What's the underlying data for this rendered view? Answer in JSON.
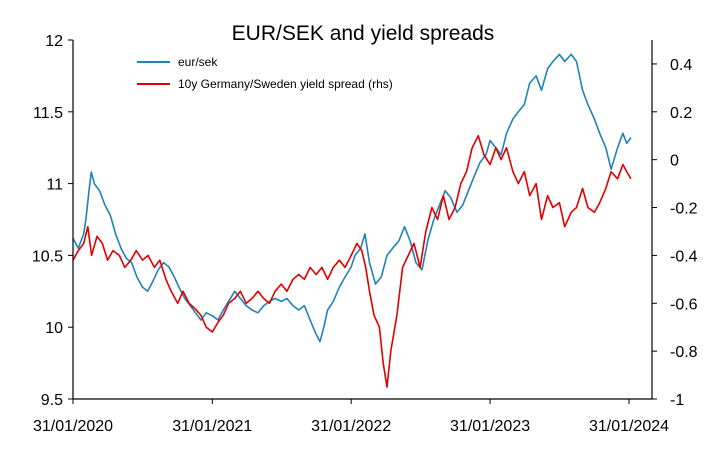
{
  "chart_data": {
    "type": "line",
    "title": "EUR/SEK and yield spreads",
    "x_ticks": [
      "31/01/2020",
      "31/01/2021",
      "31/01/2022",
      "31/01/2023",
      "31/01/2024"
    ],
    "x_range": [
      "2020-01-31",
      "2024-01-31"
    ],
    "y_left": {
      "min": 9.5,
      "max": 12,
      "ticks": [
        "9.5",
        "10",
        "10.5",
        "11",
        "11.5",
        "12"
      ]
    },
    "y_right": {
      "min": -1,
      "max": 0.5,
      "ticks": [
        "-1",
        "-0.8",
        "-0.6",
        "-0.4",
        "-0.2",
        "0",
        "0.2",
        "0.4"
      ]
    },
    "legend_position": "top-left",
    "grid": false,
    "series": [
      {
        "name": "eur/sek",
        "axis": "left",
        "color": "#1f84b4",
        "points": [
          [
            "2020-01-31",
            10.62
          ],
          [
            "2020-02-14",
            10.55
          ],
          [
            "2020-02-28",
            10.65
          ],
          [
            "2020-03-05",
            10.75
          ],
          [
            "2020-03-13",
            10.95
          ],
          [
            "2020-03-19",
            11.08
          ],
          [
            "2020-03-27",
            11.0
          ],
          [
            "2020-04-10",
            10.95
          ],
          [
            "2020-04-24",
            10.85
          ],
          [
            "2020-05-08",
            10.78
          ],
          [
            "2020-05-22",
            10.65
          ],
          [
            "2020-06-05",
            10.55
          ],
          [
            "2020-06-19",
            10.48
          ],
          [
            "2020-07-03",
            10.45
          ],
          [
            "2020-07-17",
            10.35
          ],
          [
            "2020-07-31",
            10.28
          ],
          [
            "2020-08-14",
            10.25
          ],
          [
            "2020-08-28",
            10.32
          ],
          [
            "2020-09-11",
            10.4
          ],
          [
            "2020-09-25",
            10.45
          ],
          [
            "2020-10-09",
            10.42
          ],
          [
            "2020-10-23",
            10.35
          ],
          [
            "2020-11-06",
            10.27
          ],
          [
            "2020-11-20",
            10.2
          ],
          [
            "2020-12-04",
            10.15
          ],
          [
            "2020-12-18",
            10.1
          ],
          [
            "2021-01-01",
            10.05
          ],
          [
            "2021-01-15",
            10.1
          ],
          [
            "2021-01-31",
            10.08
          ],
          [
            "2021-02-15",
            10.05
          ],
          [
            "2021-03-01",
            10.12
          ],
          [
            "2021-03-15",
            10.18
          ],
          [
            "2021-03-31",
            10.25
          ],
          [
            "2021-04-15",
            10.2
          ],
          [
            "2021-04-30",
            10.15
          ],
          [
            "2021-05-15",
            10.12
          ],
          [
            "2021-05-31",
            10.1
          ],
          [
            "2021-06-15",
            10.15
          ],
          [
            "2021-06-30",
            10.18
          ],
          [
            "2021-07-15",
            10.2
          ],
          [
            "2021-07-31",
            10.18
          ],
          [
            "2021-08-15",
            10.2
          ],
          [
            "2021-08-31",
            10.15
          ],
          [
            "2021-09-15",
            10.12
          ],
          [
            "2021-09-30",
            10.15
          ],
          [
            "2021-10-15",
            10.05
          ],
          [
            "2021-10-31",
            9.95
          ],
          [
            "2021-11-10",
            9.9
          ],
          [
            "2021-11-20",
            10.0
          ],
          [
            "2021-11-30",
            10.12
          ],
          [
            "2021-12-15",
            10.18
          ],
          [
            "2021-12-31",
            10.28
          ],
          [
            "2022-01-15",
            10.35
          ],
          [
            "2022-01-31",
            10.42
          ],
          [
            "2022-02-10",
            10.5
          ],
          [
            "2022-02-25",
            10.55
          ],
          [
            "2022-03-08",
            10.65
          ],
          [
            "2022-03-20",
            10.45
          ],
          [
            "2022-04-05",
            10.3
          ],
          [
            "2022-04-20",
            10.35
          ],
          [
            "2022-05-05",
            10.5
          ],
          [
            "2022-05-20",
            10.55
          ],
          [
            "2022-06-05",
            10.6
          ],
          [
            "2022-06-20",
            10.7
          ],
          [
            "2022-07-05",
            10.6
          ],
          [
            "2022-07-20",
            10.45
          ],
          [
            "2022-08-05",
            10.4
          ],
          [
            "2022-08-20",
            10.6
          ],
          [
            "2022-09-05",
            10.75
          ],
          [
            "2022-09-20",
            10.85
          ],
          [
            "2022-10-05",
            10.95
          ],
          [
            "2022-10-20",
            10.9
          ],
          [
            "2022-11-05",
            10.8
          ],
          [
            "2022-11-20",
            10.85
          ],
          [
            "2022-12-05",
            10.95
          ],
          [
            "2022-12-20",
            11.05
          ],
          [
            "2023-01-05",
            11.15
          ],
          [
            "2023-01-20",
            11.2
          ],
          [
            "2023-01-31",
            11.3
          ],
          [
            "2023-02-15",
            11.25
          ],
          [
            "2023-03-01",
            11.2
          ],
          [
            "2023-03-15",
            11.35
          ],
          [
            "2023-04-01",
            11.45
          ],
          [
            "2023-04-15",
            11.5
          ],
          [
            "2023-05-01",
            11.55
          ],
          [
            "2023-05-15",
            11.7
          ],
          [
            "2023-06-01",
            11.75
          ],
          [
            "2023-06-15",
            11.65
          ],
          [
            "2023-07-01",
            11.8
          ],
          [
            "2023-07-15",
            11.85
          ],
          [
            "2023-08-01",
            11.9
          ],
          [
            "2023-08-15",
            11.85
          ],
          [
            "2023-09-01",
            11.9
          ],
          [
            "2023-09-15",
            11.85
          ],
          [
            "2023-10-01",
            11.65
          ],
          [
            "2023-10-15",
            11.55
          ],
          [
            "2023-11-01",
            11.45
          ],
          [
            "2023-11-15",
            11.35
          ],
          [
            "2023-12-01",
            11.25
          ],
          [
            "2023-12-15",
            11.1
          ],
          [
            "2024-01-01",
            11.25
          ],
          [
            "2024-01-15",
            11.35
          ],
          [
            "2024-01-25",
            11.28
          ],
          [
            "2024-02-05",
            11.32
          ]
        ]
      },
      {
        "name": "10y Germany/Sweden yield spread (rhs)",
        "axis": "right",
        "color": "#e00000",
        "points": [
          [
            "2020-01-31",
            -0.42
          ],
          [
            "2020-02-14",
            -0.38
          ],
          [
            "2020-02-28",
            -0.35
          ],
          [
            "2020-03-10",
            -0.28
          ],
          [
            "2020-03-20",
            -0.4
          ],
          [
            "2020-04-03",
            -0.32
          ],
          [
            "2020-04-17",
            -0.35
          ],
          [
            "2020-05-01",
            -0.42
          ],
          [
            "2020-05-15",
            -0.38
          ],
          [
            "2020-06-01",
            -0.4
          ],
          [
            "2020-06-15",
            -0.45
          ],
          [
            "2020-07-01",
            -0.42
          ],
          [
            "2020-07-15",
            -0.38
          ],
          [
            "2020-08-01",
            -0.42
          ],
          [
            "2020-08-15",
            -0.4
          ],
          [
            "2020-09-01",
            -0.45
          ],
          [
            "2020-09-15",
            -0.42
          ],
          [
            "2020-10-01",
            -0.5
          ],
          [
            "2020-10-15",
            -0.55
          ],
          [
            "2020-11-01",
            -0.6
          ],
          [
            "2020-11-15",
            -0.55
          ],
          [
            "2020-12-01",
            -0.6
          ],
          [
            "2020-12-15",
            -0.62
          ],
          [
            "2021-01-01",
            -0.65
          ],
          [
            "2021-01-15",
            -0.7
          ],
          [
            "2021-01-31",
            -0.72
          ],
          [
            "2021-02-15",
            -0.68
          ],
          [
            "2021-03-01",
            -0.65
          ],
          [
            "2021-03-15",
            -0.6
          ],
          [
            "2021-03-31",
            -0.58
          ],
          [
            "2021-04-15",
            -0.55
          ],
          [
            "2021-04-30",
            -0.6
          ],
          [
            "2021-05-15",
            -0.58
          ],
          [
            "2021-05-31",
            -0.55
          ],
          [
            "2021-06-15",
            -0.58
          ],
          [
            "2021-06-30",
            -0.6
          ],
          [
            "2021-07-15",
            -0.55
          ],
          [
            "2021-07-31",
            -0.52
          ],
          [
            "2021-08-15",
            -0.55
          ],
          [
            "2021-08-31",
            -0.5
          ],
          [
            "2021-09-15",
            -0.48
          ],
          [
            "2021-09-30",
            -0.5
          ],
          [
            "2021-10-15",
            -0.45
          ],
          [
            "2021-10-31",
            -0.48
          ],
          [
            "2021-11-15",
            -0.45
          ],
          [
            "2021-11-30",
            -0.5
          ],
          [
            "2021-12-15",
            -0.45
          ],
          [
            "2021-12-31",
            -0.42
          ],
          [
            "2022-01-15",
            -0.45
          ],
          [
            "2022-01-31",
            -0.4
          ],
          [
            "2022-02-15",
            -0.35
          ],
          [
            "2022-02-28",
            -0.38
          ],
          [
            "2022-03-10",
            -0.45
          ],
          [
            "2022-03-20",
            -0.55
          ],
          [
            "2022-04-01",
            -0.65
          ],
          [
            "2022-04-15",
            -0.7
          ],
          [
            "2022-04-25",
            -0.85
          ],
          [
            "2022-05-05",
            -0.95
          ],
          [
            "2022-05-15",
            -0.8
          ],
          [
            "2022-05-31",
            -0.65
          ],
          [
            "2022-06-15",
            -0.45
          ],
          [
            "2022-06-30",
            -0.4
          ],
          [
            "2022-07-15",
            -0.35
          ],
          [
            "2022-07-31",
            -0.45
          ],
          [
            "2022-08-15",
            -0.3
          ],
          [
            "2022-08-31",
            -0.2
          ],
          [
            "2022-09-15",
            -0.25
          ],
          [
            "2022-09-30",
            -0.15
          ],
          [
            "2022-10-15",
            -0.25
          ],
          [
            "2022-10-31",
            -0.2
          ],
          [
            "2022-11-15",
            -0.1
          ],
          [
            "2022-11-30",
            -0.05
          ],
          [
            "2022-12-15",
            0.05
          ],
          [
            "2022-12-31",
            0.1
          ],
          [
            "2023-01-15",
            0.02
          ],
          [
            "2023-01-31",
            -0.02
          ],
          [
            "2023-02-15",
            0.05
          ],
          [
            "2023-03-01",
            0.0
          ],
          [
            "2023-03-15",
            0.05
          ],
          [
            "2023-04-01",
            -0.05
          ],
          [
            "2023-04-15",
            -0.1
          ],
          [
            "2023-05-01",
            -0.05
          ],
          [
            "2023-05-15",
            -0.15
          ],
          [
            "2023-06-01",
            -0.1
          ],
          [
            "2023-06-15",
            -0.25
          ],
          [
            "2023-07-01",
            -0.15
          ],
          [
            "2023-07-15",
            -0.2
          ],
          [
            "2023-08-01",
            -0.18
          ],
          [
            "2023-08-15",
            -0.28
          ],
          [
            "2023-09-01",
            -0.22
          ],
          [
            "2023-09-15",
            -0.2
          ],
          [
            "2023-10-01",
            -0.12
          ],
          [
            "2023-10-15",
            -0.2
          ],
          [
            "2023-11-01",
            -0.22
          ],
          [
            "2023-11-15",
            -0.18
          ],
          [
            "2023-12-01",
            -0.12
          ],
          [
            "2023-12-15",
            -0.05
          ],
          [
            "2024-01-01",
            -0.08
          ],
          [
            "2024-01-15",
            -0.02
          ],
          [
            "2024-01-25",
            -0.05
          ],
          [
            "2024-02-05",
            -0.08
          ]
        ]
      }
    ]
  }
}
